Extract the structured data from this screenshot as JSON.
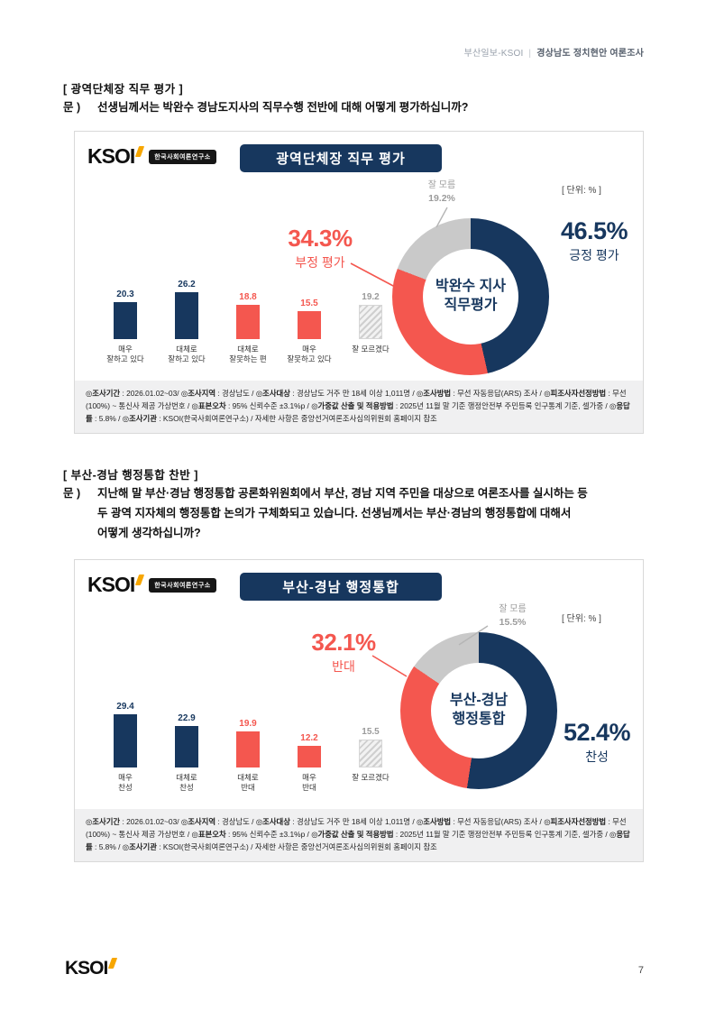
{
  "header": {
    "publication": "부산일보-KSOI",
    "divider": "|",
    "title": "경상남도 정치현안 여론조사"
  },
  "logo": {
    "text": "KSOI",
    "subtitle": "한국사회여론연구소"
  },
  "colors": {
    "navy": "#17375e",
    "red": "#f4574f",
    "gray": "#c9c9c9",
    "orange": "#f7a600"
  },
  "sections": [
    {
      "heading": "[ 광역단체장 직무 평가 ]",
      "q_label": "문 )",
      "question_lines": [
        "선생님께서는 박완수 경남도지사의 직무수행 전반에 대해 어떻게 평가하십니까?"
      ]
    },
    {
      "heading": "[ 부산-경남 행정통합 찬반 ]",
      "q_label": "문 )",
      "question_lines": [
        "지난해 말 부산·경남 행정통합 공론화위원회에서 부산, 경남 지역 주민을 대상으로 여론조사를 실시하는 등",
        "두 광역 지자체의 행정통합 논의가 구체화되고 있습니다. 선생님께서는 부산·경남의 행정통합에 대해서",
        "어떻게 생각하십니까?"
      ]
    }
  ],
  "chart_data": [
    {
      "type": "donut+bar",
      "title": "광역단체장 직무 평가",
      "unit_label": "[ 단위: % ]",
      "donut": {
        "center_lines": [
          "박완수 지사",
          "직무평가"
        ],
        "segments": [
          {
            "name": "긍정 평가",
            "value": 46.5,
            "pct_label": "46.5%",
            "color_key": "navy"
          },
          {
            "name": "부정 평가",
            "value": 34.3,
            "pct_label": "34.3%",
            "color_key": "red"
          },
          {
            "name": "잘 모름",
            "value": 19.2,
            "pct_label": "19.2%",
            "color_key": "gray"
          }
        ]
      },
      "bars": {
        "categories": [
          [
            "매우",
            "잘하고 있다"
          ],
          [
            "대체로",
            "잘하고 있다"
          ],
          [
            "대체로",
            "잘못하는 편"
          ],
          [
            "매우",
            "잘못하고 있다"
          ],
          [
            "잘 모르겠다"
          ]
        ],
        "values": [
          20.3,
          26.2,
          18.8,
          15.5,
          19.2
        ],
        "styles": [
          "navy",
          "navy",
          "red",
          "red",
          "hatch"
        ]
      }
    },
    {
      "type": "donut+bar",
      "title": "부산-경남 행정통합",
      "unit_label": "[ 단위: % ]",
      "donut": {
        "center_lines": [
          "부산-경남",
          "행정통합"
        ],
        "segments": [
          {
            "name": "찬성",
            "value": 52.4,
            "pct_label": "52.4%",
            "color_key": "navy"
          },
          {
            "name": "반대",
            "value": 32.1,
            "pct_label": "32.1%",
            "color_key": "red"
          },
          {
            "name": "잘 모름",
            "value": 15.5,
            "pct_label": "15.5%",
            "color_key": "gray"
          }
        ]
      },
      "bars": {
        "categories": [
          [
            "매우",
            "찬성"
          ],
          [
            "대체로",
            "찬성"
          ],
          [
            "대체로",
            "반대"
          ],
          [
            "매우",
            "반대"
          ],
          [
            "잘 모르겠다"
          ]
        ],
        "values": [
          29.4,
          22.9,
          19.9,
          12.2,
          15.5
        ],
        "styles": [
          "navy",
          "navy",
          "red",
          "red",
          "hatch"
        ]
      }
    }
  ],
  "methodology_parts": [
    [
      "◎조사기간",
      " : 2026.01.02~03/ "
    ],
    [
      "◎조사지역",
      " : 경상남도 / "
    ],
    [
      "◎조사대상",
      " : 경상남도 거주 만 18세 이상 1,011명 / "
    ],
    [
      "◎조사방법",
      " : 무선 자동응답(ARS) 조사 / "
    ],
    [
      "◎피조사자선정방법",
      " : 무선(100%) ~ 통신사 제공 가상번호 / "
    ],
    [
      "◎표본오차",
      " : 95% 신뢰수준 ±3.1%p / "
    ],
    [
      "◎가중값 산출 및 적용방법",
      " : 2025년 11월 말 기준 행정안전부 주민등록 인구통계 기준, 셀가중 / "
    ],
    [
      "◎응답률",
      " : 5.8% / "
    ],
    [
      "◎조사기관",
      " : KSOI(한국사회여론연구소) / 자세한 사항은 중앙선거여론조사심의위원회 홈페이지 참조"
    ]
  ],
  "footer": {
    "page_number": "7"
  }
}
